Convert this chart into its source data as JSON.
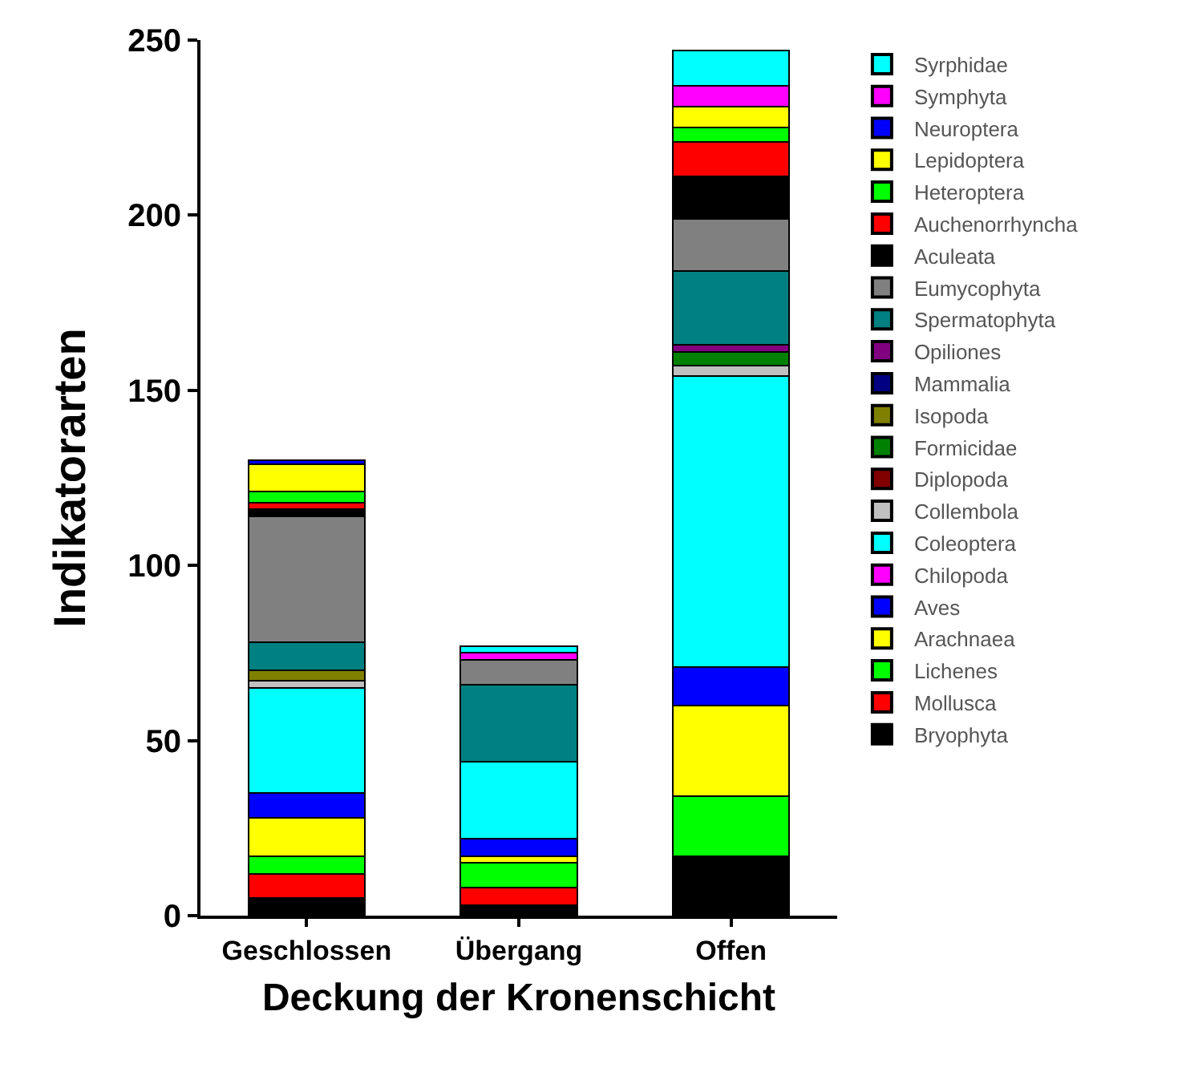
{
  "chart_data": {
    "type": "bar",
    "stacked": true,
    "xlabel": "Deckung der Kronenschicht",
    "ylabel": "Indikatorarten",
    "categories": [
      "Geschlossen",
      "Übergang",
      "Offen"
    ],
    "ylim": [
      0,
      250
    ],
    "yticks": [
      0,
      50,
      100,
      150,
      200,
      250
    ],
    "legend": "top right",
    "series": [
      {
        "name": "Bryophyta",
        "color": "#000000",
        "values": [
          5,
          3,
          17
        ]
      },
      {
        "name": "Mollusca",
        "color": "#ff0000",
        "values": [
          7,
          5,
          0
        ]
      },
      {
        "name": "Lichenes",
        "color": "#00ff00",
        "values": [
          5,
          7,
          17
        ]
      },
      {
        "name": "Arachnaea",
        "color": "#ffff00",
        "values": [
          11,
          2,
          26
        ]
      },
      {
        "name": "Aves",
        "color": "#0000ff",
        "values": [
          7,
          5,
          11
        ]
      },
      {
        "name": "Chilopoda",
        "color": "#ff00ff",
        "values": [
          0,
          0,
          0
        ]
      },
      {
        "name": "Coleoptera",
        "color": "#00ffff",
        "values": [
          30,
          22,
          83
        ]
      },
      {
        "name": "Collembola",
        "color": "#c0c0c0",
        "values": [
          2,
          0,
          3
        ]
      },
      {
        "name": "Diplopoda",
        "color": "#800000",
        "values": [
          0,
          0,
          0
        ]
      },
      {
        "name": "Formicidae",
        "color": "#008000",
        "values": [
          0,
          0,
          4
        ]
      },
      {
        "name": "Isopoda",
        "color": "#808000",
        "values": [
          3,
          0,
          0
        ]
      },
      {
        "name": "Mammalia",
        "color": "#000080",
        "values": [
          0,
          0,
          0
        ]
      },
      {
        "name": "Opiliones",
        "color": "#800080",
        "values": [
          0,
          0,
          2
        ]
      },
      {
        "name": "Spermatophyta",
        "color": "#008080",
        "values": [
          8,
          22,
          21
        ]
      },
      {
        "name": "Eumycophyta",
        "color": "#808080",
        "values": [
          36,
          7,
          15
        ]
      },
      {
        "name": "Aculeata",
        "color": "#000000",
        "values": [
          2,
          0,
          12
        ]
      },
      {
        "name": "Auchenorrhyncha",
        "color": "#ff0000",
        "values": [
          2,
          0,
          10
        ]
      },
      {
        "name": "Heteroptera",
        "color": "#00ff00",
        "values": [
          3,
          0,
          4
        ]
      },
      {
        "name": "Lepidoptera",
        "color": "#ffff00",
        "values": [
          8,
          0,
          6
        ]
      },
      {
        "name": "Neuroptera",
        "color": "#0000ff",
        "values": [
          1,
          0,
          0
        ]
      },
      {
        "name": "Symphyta",
        "color": "#ff00ff",
        "values": [
          0,
          2,
          6
        ]
      },
      {
        "name": "Syrphidae",
        "color": "#00ffff",
        "values": [
          0,
          2,
          10
        ]
      }
    ]
  }
}
